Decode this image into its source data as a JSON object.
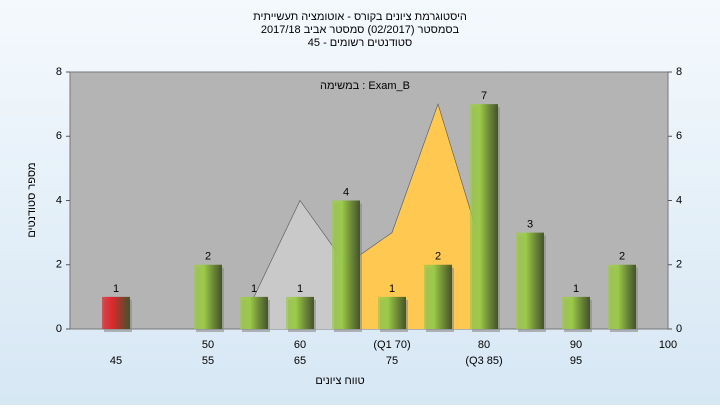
{
  "chart_data": {
    "type": "bar",
    "title_lines": [
      "היסטוגרמת ציונים בקורס - אוטומציה תעשייתית",
      "בסמסטר  (02/2017)  סמסטר אביב 2017/18",
      "סטודנטים רשומים - 45"
    ],
    "annotation": "במשימה : Exam_B",
    "x_label": "טווח ציונים",
    "y_label": "מספר סטודנטים",
    "categories": [
      "45",
      "50",
      "55",
      "60",
      "65",
      "(Q1 70)",
      "75",
      "80",
      "(Q3 85)",
      "90",
      "95",
      "100"
    ],
    "values": [
      1,
      0,
      2,
      1,
      1,
      4,
      1,
      2,
      7,
      3,
      1,
      2
    ],
    "colors": [
      "#e0282c",
      "#9ccb48",
      "#9ccb48",
      "#9ccb48",
      "#9ccb48",
      "#9ccb48",
      "#9ccb48",
      "#9ccb48",
      "#9ccb48",
      "#9ccb48",
      "#9ccb48",
      "#9ccb48"
    ],
    "area_values": [
      null,
      null,
      null,
      1,
      4,
      2,
      3,
      7,
      2.3,
      null,
      null,
      null
    ],
    "area_color": "#c9c9c9",
    "iqr_color": "#ffc850",
    "ylim": [
      0,
      8
    ],
    "yticks": [
      0,
      2,
      4,
      6,
      8
    ]
  }
}
